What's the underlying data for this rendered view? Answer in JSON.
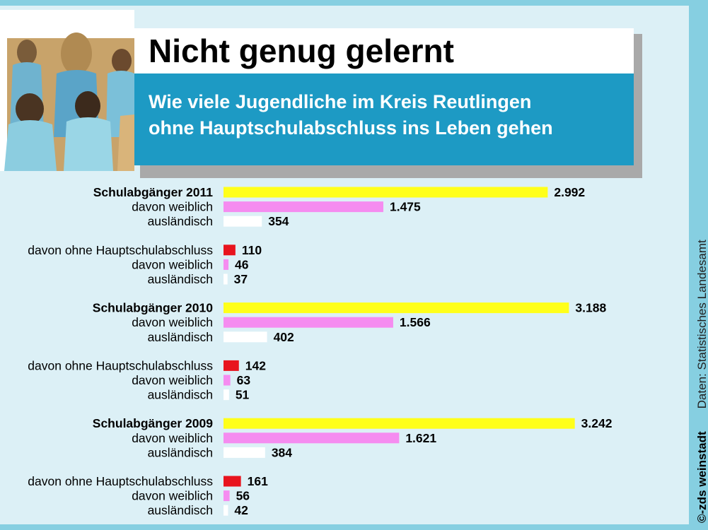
{
  "header": {
    "title": "Nicht genug gelernt",
    "subtitle": "Wie viele Jugendliche im Kreis Reutlingen\nohne Hauptschulabschluss ins Leben gehen"
  },
  "credit": {
    "agency": "©-zds weinstadt",
    "source": "Daten: Statistisches Landesamt"
  },
  "colors": {
    "gesamt": "#ffff1a",
    "weiblich": "#f58cf0",
    "auslaendisch": "#ffffff",
    "ohne_abschluss": "#e8141e",
    "header_blue": "#1d9ac4",
    "background": "#86cfe1"
  },
  "chart_data": {
    "type": "bar",
    "orientation": "horizontal",
    "groups": [
      {
        "rows": [
          {
            "label": "Schulabgänger 2011",
            "value": 2992,
            "display": "2.992",
            "series": "gesamt",
            "bold": true
          },
          {
            "label": "davon weiblich",
            "value": 1475,
            "display": "1.475",
            "series": "weiblich"
          },
          {
            "label": "ausländisch",
            "value": 354,
            "display": "354",
            "series": "auslaendisch"
          }
        ]
      },
      {
        "rows": [
          {
            "label": "davon ohne Hauptschulabschluss",
            "value": 110,
            "display": "110",
            "series": "ohne_abschluss"
          },
          {
            "label": "davon weiblich",
            "value": 46,
            "display": "46",
            "series": "weiblich"
          },
          {
            "label": "ausländisch",
            "value": 37,
            "display": "37",
            "series": "auslaendisch"
          }
        ]
      },
      {
        "rows": [
          {
            "label": "Schulabgänger 2010",
            "value": 3188,
            "display": "3.188",
            "series": "gesamt",
            "bold": true
          },
          {
            "label": "davon weiblich",
            "value": 1566,
            "display": "1.566",
            "series": "weiblich"
          },
          {
            "label": "ausländisch",
            "value": 402,
            "display": "402",
            "series": "auslaendisch"
          }
        ]
      },
      {
        "rows": [
          {
            "label": "davon ohne Hauptschulabschluss",
            "value": 142,
            "display": "142",
            "series": "ohne_abschluss"
          },
          {
            "label": "davon weiblich",
            "value": 63,
            "display": "63",
            "series": "weiblich"
          },
          {
            "label": "ausländisch",
            "value": 51,
            "display": "51",
            "series": "auslaendisch"
          }
        ]
      },
      {
        "rows": [
          {
            "label": "Schulabgänger 2009",
            "value": 3242,
            "display": "3.242",
            "series": "gesamt",
            "bold": true
          },
          {
            "label": "davon weiblich",
            "value": 1621,
            "display": "1.621",
            "series": "weiblich"
          },
          {
            "label": "ausländisch",
            "value": 384,
            "display": "384",
            "series": "auslaendisch"
          }
        ]
      },
      {
        "rows": [
          {
            "label": "davon ohne Hauptschulabschluss",
            "value": 161,
            "display": "161",
            "series": "ohne_abschluss"
          },
          {
            "label": "davon weiblich",
            "value": 56,
            "display": "56",
            "series": "weiblich"
          },
          {
            "label": "ausländisch",
            "value": 42,
            "display": "42",
            "series": "auslaendisch"
          }
        ]
      }
    ]
  }
}
